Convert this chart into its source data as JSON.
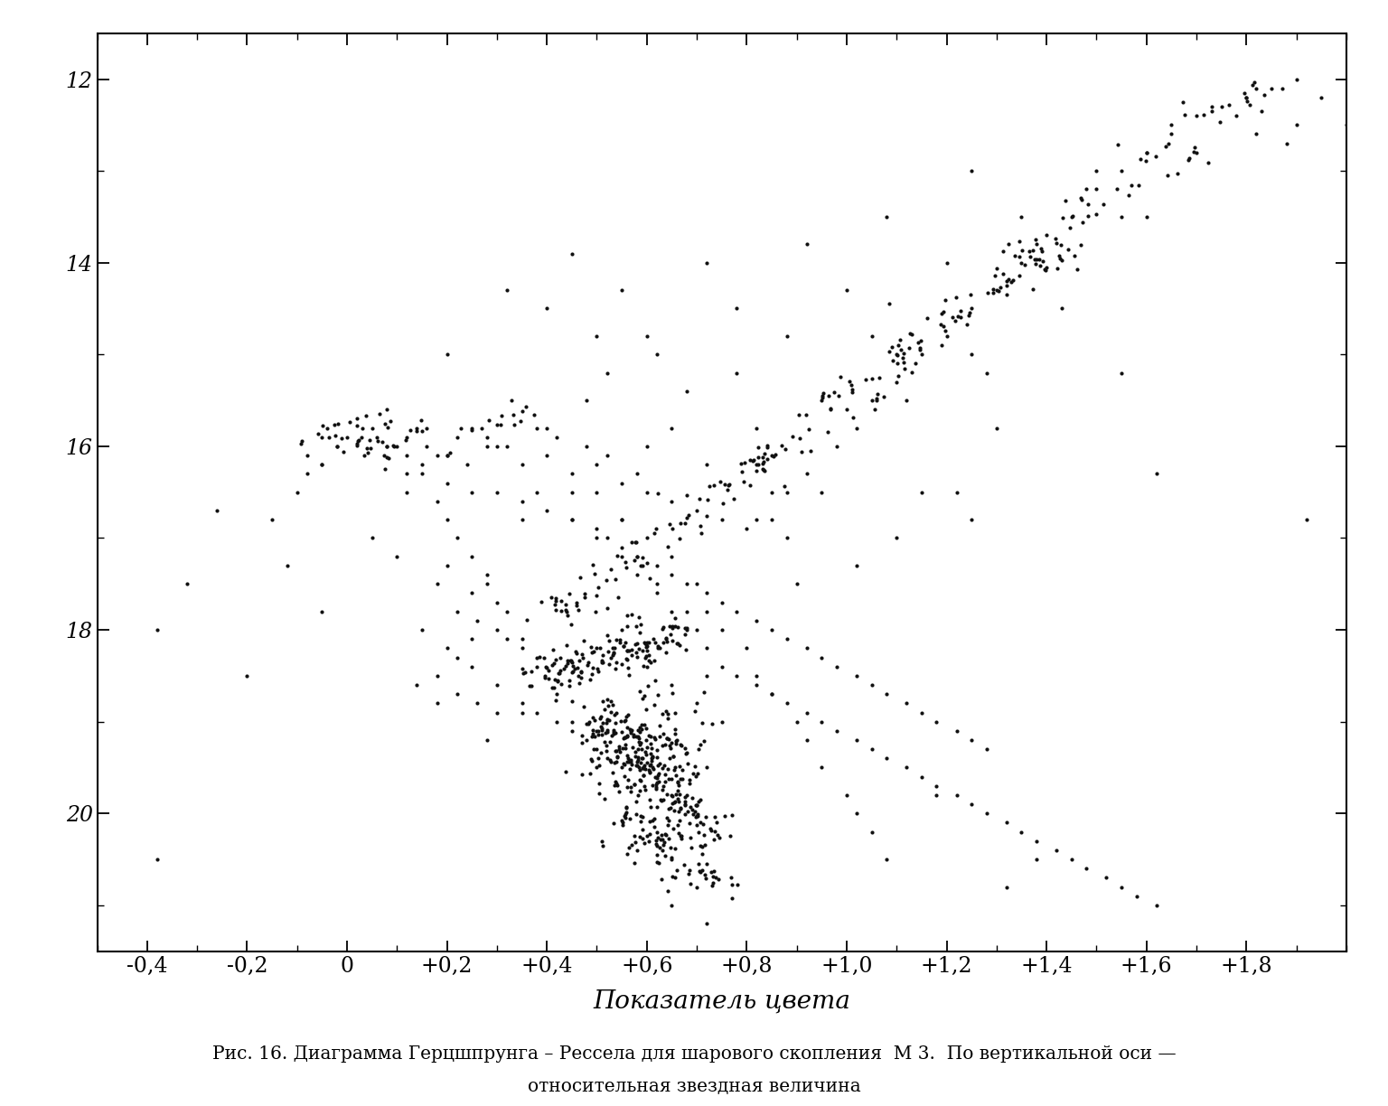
{
  "xlabel": "Показатель цвета",
  "caption_line1": "Рис. 16. Диаграмма Герцшпрунга – Рессела для шарового скопления  М 3.  По вертикальной оси —",
  "caption_line2": "относительная звездная величина",
  "xlim": [
    -0.5,
    2.0
  ],
  "ylim": [
    21.5,
    11.5
  ],
  "xticks": [
    -0.4,
    -0.2,
    0.0,
    0.2,
    0.4,
    0.6,
    0.8,
    1.0,
    1.2,
    1.4,
    1.6,
    1.8
  ],
  "yticks": [
    12,
    14,
    16,
    18,
    20
  ],
  "xtick_labels": [
    "-0,4",
    "-0,2",
    "0",
    "+0,2",
    "+0,4",
    "+0,6",
    "+0,8",
    "+1,0",
    "+1,2",
    "+1,4",
    "+1,6",
    "+1,8"
  ],
  "ytick_labels": [
    "12",
    "14",
    "16",
    "18",
    "20"
  ],
  "background_color": "#ffffff",
  "dot_color": "#111111",
  "random_seed": 42
}
